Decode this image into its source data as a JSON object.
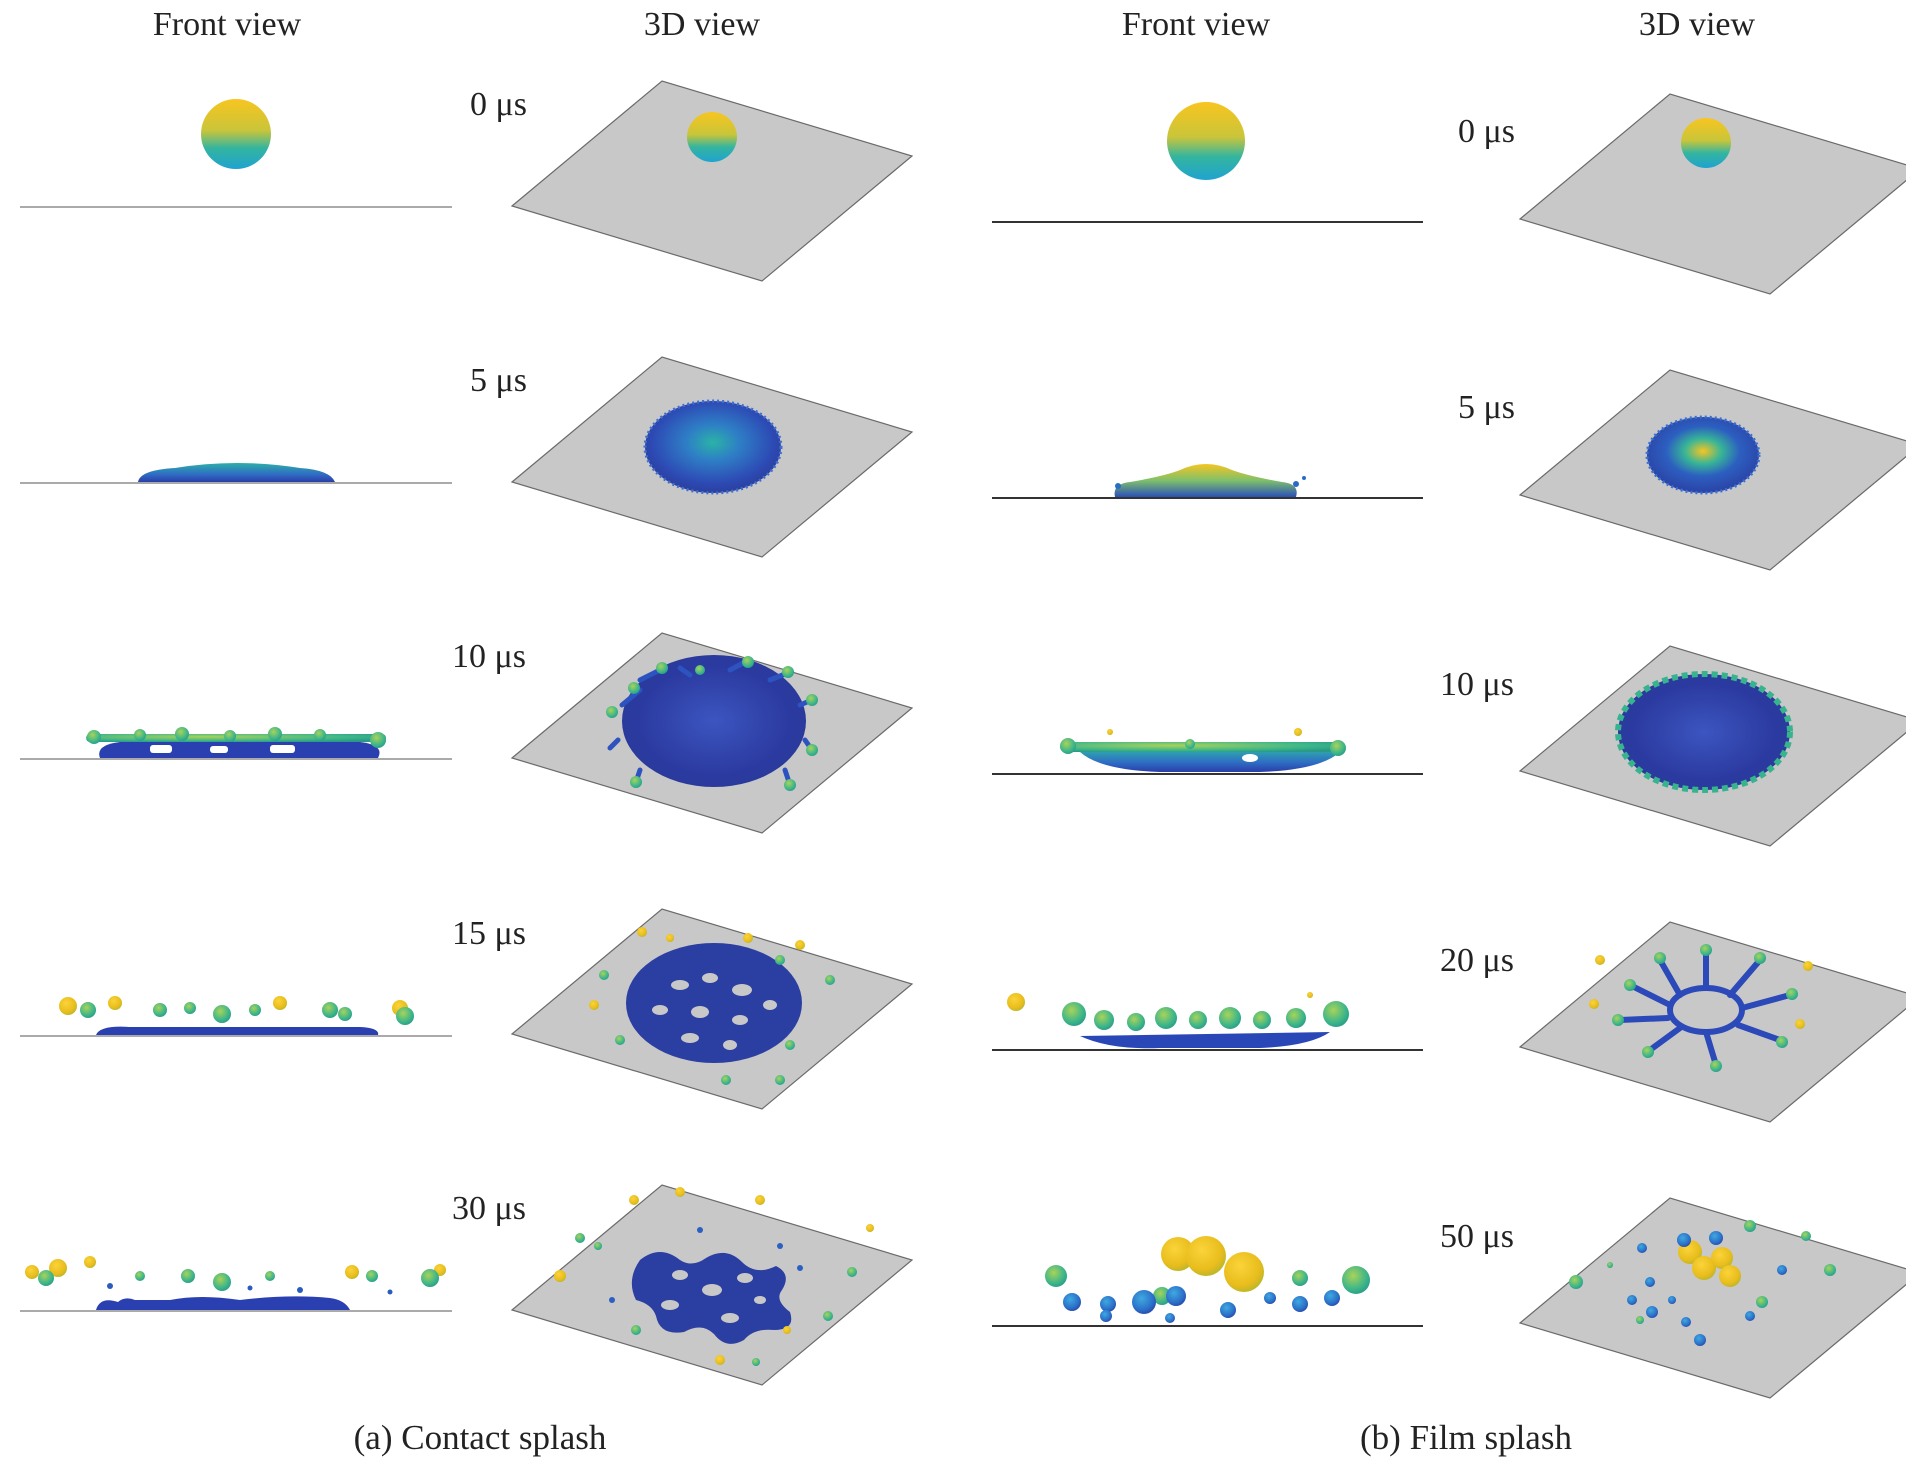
{
  "headers": {
    "a_front": "Front view",
    "a_3d": "3D view",
    "b_front": "Front view",
    "b_3d": "3D view"
  },
  "panel_a": {
    "caption": "(a) Contact splash",
    "times": [
      "0 μs",
      "5 μs",
      "10 μs",
      "15 μs",
      "30 μs"
    ]
  },
  "panel_b": {
    "caption": "(b) Film splash",
    "times": [
      "0 μs",
      "5 μs",
      "10 μs",
      "20 μs",
      "50 μs"
    ]
  },
  "colors": {
    "surface": "#c8c8c8",
    "droplet_top": "#f6c521",
    "droplet_mid": "#2bb2a2",
    "droplet_base": "#2a47b8",
    "droplet_deep": "#27308f"
  }
}
